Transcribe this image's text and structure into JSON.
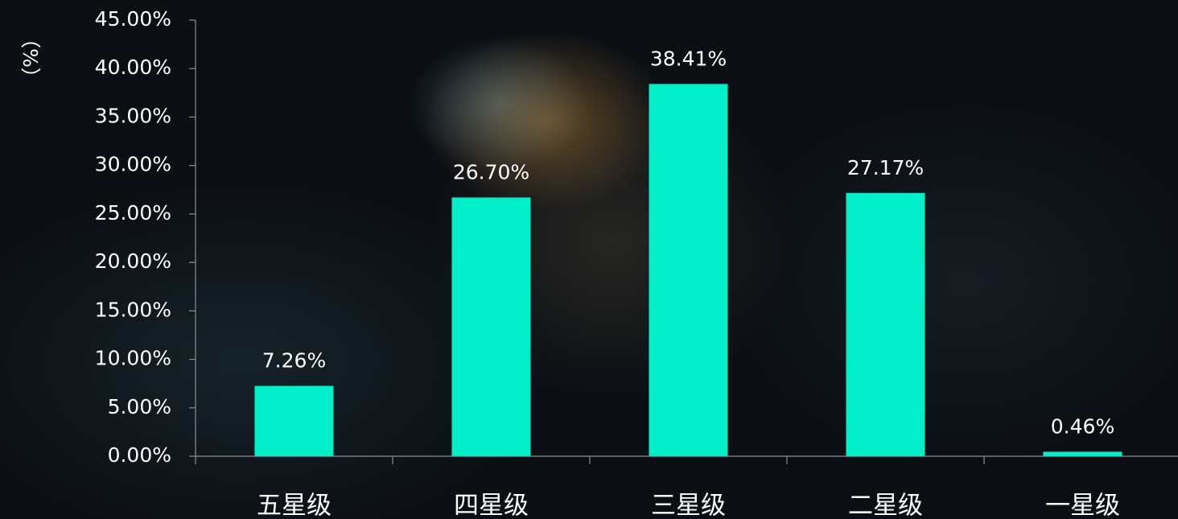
{
  "chart_data": {
    "type": "bar",
    "y_label": "（%）",
    "categories": [
      "五星级",
      "四星级",
      "三星级",
      "二星级",
      "一星级"
    ],
    "values": [
      7.26,
      26.7,
      38.41,
      27.17,
      0.46
    ],
    "value_labels": [
      "7.26%",
      "26.70%",
      "38.41%",
      "27.17%",
      "0.46%"
    ],
    "color": "#00efc9",
    "ylim": [
      0,
      45
    ],
    "yticks": [
      {
        "value": 0,
        "label": "0.00%"
      },
      {
        "value": 5,
        "label": "5.00%"
      },
      {
        "value": 10,
        "label": "10.00%"
      },
      {
        "value": 15,
        "label": "15.00%"
      },
      {
        "value": 20,
        "label": "20.00%"
      },
      {
        "value": 25,
        "label": "25.00%"
      },
      {
        "value": 30,
        "label": "30.00%"
      },
      {
        "value": 35,
        "label": "35.00%"
      },
      {
        "value": 40,
        "label": "40.00%"
      },
      {
        "value": 45,
        "label": "45.00%"
      }
    ]
  }
}
